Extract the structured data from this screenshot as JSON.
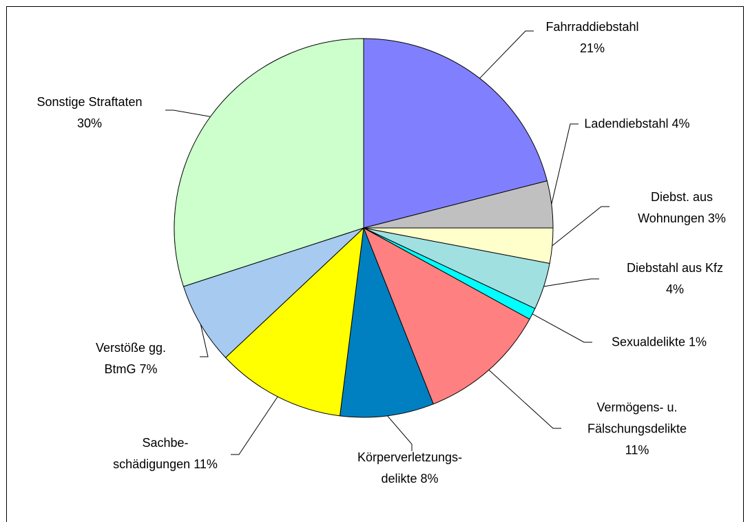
{
  "chart_data": {
    "type": "pie",
    "categories": [
      "Fahrraddiebstahl",
      "Ladendiebstahl",
      "Diebst. aus Wohnungen",
      "Diebstahl aus Kfz",
      "Sexualdelikte",
      "Vermögens- u. Fälschungsdelikte",
      "Körperverletzungs-delikte",
      "Sachbe-schädigungen",
      "Verstöße gg. BtmG",
      "Sonstige Straftaten"
    ],
    "values": [
      21,
      4,
      3,
      4,
      1,
      11,
      8,
      11,
      7,
      30
    ],
    "value_labels": [
      "21%",
      "4%",
      "3%",
      "4%",
      "1%",
      "11%",
      "8%",
      "11%",
      "7%",
      "30%"
    ],
    "colors": [
      "#8080ff",
      "#c0c0c0",
      "#ffffcc",
      "#a0e0e0",
      "#00ffff",
      "#ff8080",
      "#0080c0",
      "#ffff00",
      "#a6caf0",
      "#ccffcc"
    ]
  }
}
